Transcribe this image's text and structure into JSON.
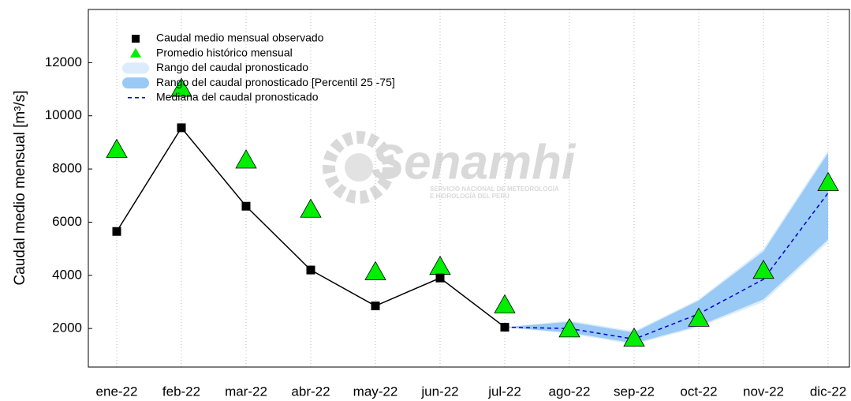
{
  "chart_data": {
    "type": "line",
    "y_label": "Caudal medio mensual [m³/s]",
    "watermark": {
      "title": "Senamhi",
      "line1": "SERVICIO NACIONAL DE METEOROLOGÍA",
      "line2": "E HIDROLOGÍA DEL PERÚ"
    },
    "categories": [
      "ene-22",
      "feb-22",
      "mar-22",
      "abr-22",
      "may-22",
      "jun-22",
      "jul-22",
      "ago-22",
      "sep-22",
      "oct-22",
      "nov-22",
      "dic-22"
    ],
    "ylim": [
      550,
      14000
    ],
    "yticks": [
      2000,
      4000,
      6000,
      8000,
      10000,
      12000
    ],
    "grid": true,
    "legend": "upper left",
    "series": [
      {
        "name": "Caudal medio mensual observado",
        "kind": "line",
        "marker": "square",
        "color": "#000000",
        "values": [
          5650,
          9550,
          6600,
          4200,
          2850,
          3900,
          2050,
          null,
          null,
          null,
          null,
          null
        ]
      },
      {
        "name": "Promedio histórico mensual",
        "kind": "marker",
        "marker": "triangle",
        "color": "#00ee00",
        "values": [
          8700,
          11000,
          8300,
          6450,
          4100,
          4300,
          2850,
          1950,
          1600,
          2350,
          4150,
          7450
        ]
      },
      {
        "name": "Rango del caudal pronosticado",
        "kind": "band",
        "color": "#dcecfc",
        "lower": [
          null,
          null,
          null,
          null,
          null,
          null,
          2050,
          1800,
          1400,
          2050,
          3000,
          5250
        ],
        "upper": [
          null,
          null,
          null,
          null,
          null,
          null,
          2050,
          2300,
          1900,
          3100,
          5000,
          8700
        ]
      },
      {
        "name": "Rango del caudal pronosticado [Percentil 25 -75]",
        "kind": "band",
        "color": "#99c9f5",
        "lower": [
          null,
          null,
          null,
          null,
          null,
          null,
          2050,
          1850,
          1450,
          2100,
          3100,
          5350
        ],
        "upper": [
          null,
          null,
          null,
          null,
          null,
          null,
          2050,
          2250,
          1850,
          3050,
          4900,
          8600
        ]
      },
      {
        "name": "Mediana del caudal pronosticado",
        "kind": "dashed",
        "color": "#0000cc",
        "values": [
          null,
          null,
          null,
          null,
          null,
          null,
          2050,
          2000,
          1600,
          2550,
          3850,
          7100
        ]
      }
    ]
  }
}
